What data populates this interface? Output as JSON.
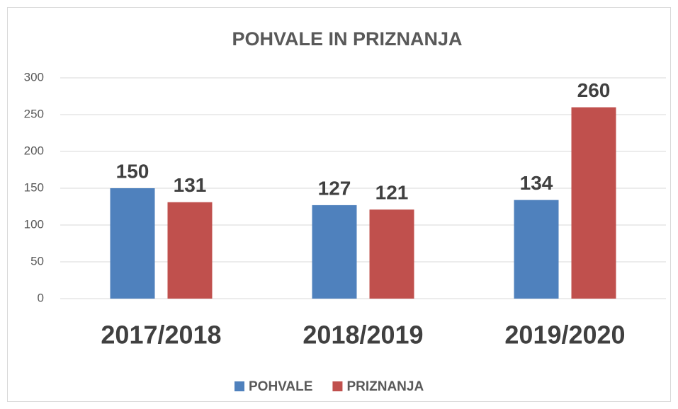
{
  "chart_data": {
    "type": "bar",
    "title": "POHVALE IN PRIZNANJA",
    "categories": [
      "2017/2018",
      "2018/2019",
      "2019/2020"
    ],
    "series": [
      {
        "name": "POHVALE",
        "color": "#4f81bd",
        "values": [
          150,
          127,
          134
        ]
      },
      {
        "name": "PRIZNANJA",
        "color": "#c0504d",
        "values": [
          131,
          121,
          260
        ]
      }
    ],
    "ylim": [
      0,
      300
    ],
    "yticks": [
      0,
      50,
      100,
      150,
      200,
      250,
      300
    ],
    "grid": true,
    "legend": "bottom"
  }
}
